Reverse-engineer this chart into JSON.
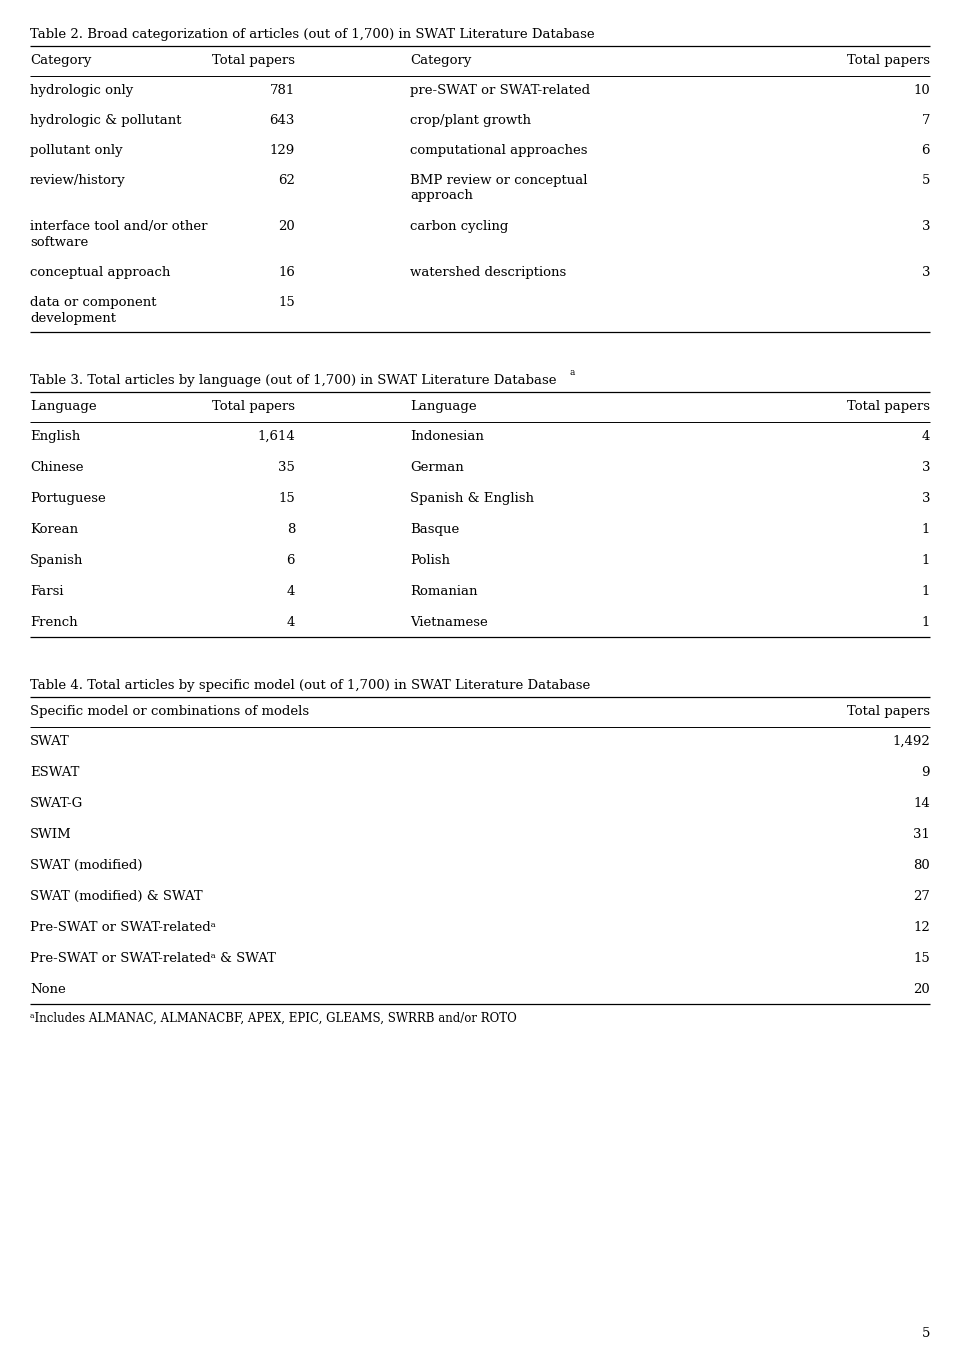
{
  "bg_color": "#ffffff",
  "text_color": "#000000",
  "font_family": "DejaVu Serif",
  "page_number": "5",
  "table2": {
    "title": "Table 2. Broad categorization of articles (out of 1,700) in SWAT Literature Database",
    "col_headers": [
      "Category",
      "Total papers",
      "Category",
      "Total papers"
    ],
    "rows": [
      [
        "hydrologic only",
        "781",
        "pre-SWAT or SWAT-related",
        "10"
      ],
      [
        "hydrologic & pollutant",
        "643",
        "crop/plant growth",
        "7"
      ],
      [
        "pollutant only",
        "129",
        "computational approaches",
        "6"
      ],
      [
        "review/history",
        "62",
        "BMP review or conceptual\napproach",
        "5"
      ],
      [
        "interface tool and/or other\nsoftware",
        "20",
        "carbon cycling",
        "3"
      ],
      [
        "conceptual approach",
        "16",
        "watershed descriptions",
        "3"
      ],
      [
        "data or component\ndevelopment",
        "15",
        "",
        ""
      ]
    ]
  },
  "table3": {
    "title": "Table 3. Total articles by language (out of 1,700) in SWAT Literature Database",
    "title_superscript": "a",
    "col_headers": [
      "Language",
      "Total papers",
      "Language",
      "Total papers"
    ],
    "rows": [
      [
        "English",
        "1,614",
        "Indonesian",
        "4"
      ],
      [
        "Chinese",
        "35",
        "German",
        "3"
      ],
      [
        "Portuguese",
        "15",
        "Spanish & English",
        "3"
      ],
      [
        "Korean",
        "8",
        "Basque",
        "1"
      ],
      [
        "Spanish",
        "6",
        "Polish",
        "1"
      ],
      [
        "Farsi",
        "4",
        "Romanian",
        "1"
      ],
      [
        "French",
        "4",
        "Vietnamese",
        "1"
      ]
    ]
  },
  "table4": {
    "title": "Table 4. Total articles by specific model (out of 1,700) in SWAT Literature Database",
    "col_headers": [
      "Specific model or combinations of models",
      "Total papers"
    ],
    "rows": [
      [
        "SWAT",
        "1,492"
      ],
      [
        "ESWAT",
        "9"
      ],
      [
        "SWAT-G",
        "14"
      ],
      [
        "SWIM",
        "31"
      ],
      [
        "SWAT (modified)",
        "80"
      ],
      [
        "SWAT (modified) & SWAT",
        "27"
      ],
      [
        "Pre-SWAT or SWAT-relatedᵃ",
        "12"
      ],
      [
        "Pre-SWAT or SWAT-relatedᵃ & SWAT",
        "15"
      ],
      [
        "None",
        "20"
      ]
    ],
    "footnote": "ᵃIncludes ALMANAC, ALMANACBF, APEX, EPIC, GLEAMS, SWRRB and/or ROTO"
  }
}
